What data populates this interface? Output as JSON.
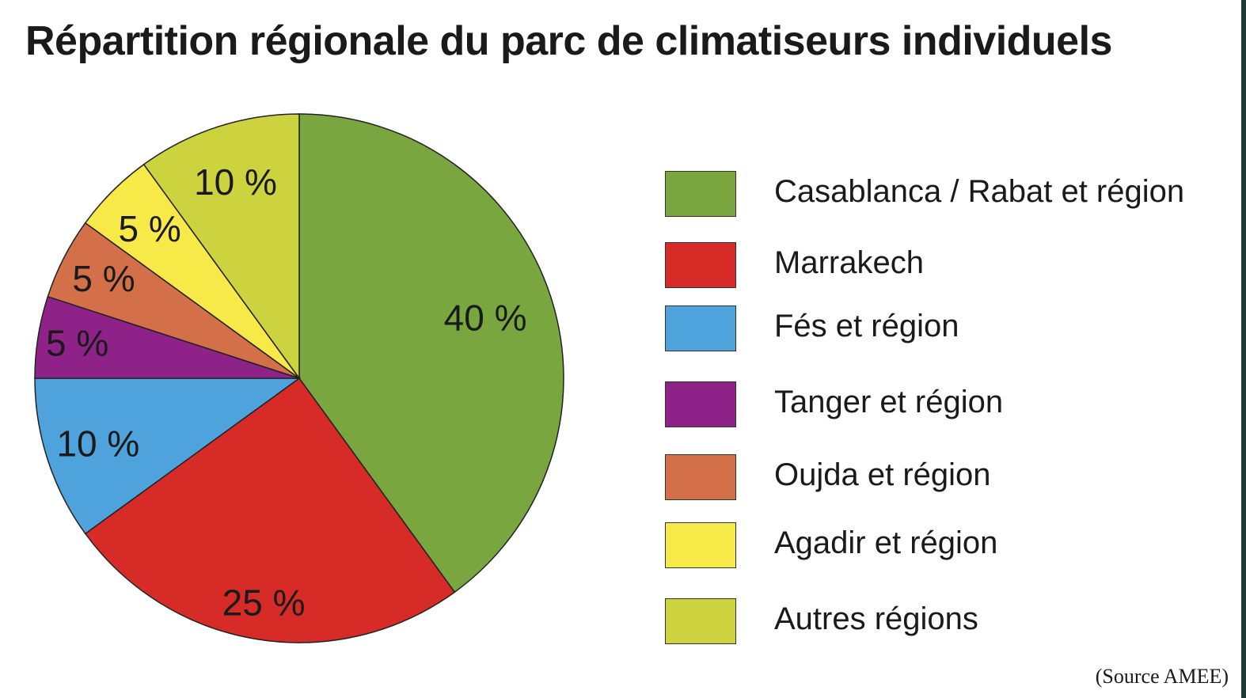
{
  "chart_data": {
    "type": "pie",
    "title": "Répartition régionale du parc de climatiseurs individuels",
    "source": "(Source AMEE)",
    "legend_position": "right",
    "slices": [
      {
        "name": "Casablanca / Rabat et région",
        "value": 40,
        "label": "40 %",
        "color": "#7aa63f"
      },
      {
        "name": "Marrakech",
        "value": 25,
        "label": "25 %",
        "color": "#d62b27"
      },
      {
        "name": "Fés et région",
        "value": 10,
        "label": "10 %",
        "color": "#4fa3dd"
      },
      {
        "name": "Tanger et région",
        "value": 5,
        "label": "5 %",
        "color": "#8e2288"
      },
      {
        "name": "Oujda et région",
        "value": 5,
        "label": "5 %",
        "color": "#d3704a"
      },
      {
        "name": "Agadir et région",
        "value": 5,
        "label": "5 %",
        "color": "#f7ea48"
      },
      {
        "name": "Autres régions",
        "value": 10,
        "label": "10 %",
        "color": "#cdd23f"
      }
    ]
  }
}
